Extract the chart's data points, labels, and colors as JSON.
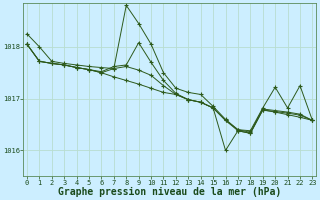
{
  "background_color": "#cceeff",
  "grid_color": "#aaddcc",
  "line_color": "#2d5a1b",
  "marker_color": "#2d5a1b",
  "xlabel": "Graphe pression niveau de la mer (hPa)",
  "xlabel_fontsize": 7,
  "yticks": [
    1016,
    1017,
    1018
  ],
  "ylim": [
    1015.5,
    1018.85
  ],
  "xlim": [
    -0.3,
    23.3
  ],
  "xticks": [
    0,
    1,
    2,
    3,
    4,
    5,
    6,
    7,
    8,
    9,
    10,
    11,
    12,
    13,
    14,
    15,
    16,
    17,
    18,
    19,
    20,
    21,
    22,
    23
  ],
  "tick_fontsize": 5,
  "series": [
    [
      1018.25,
      1018.0,
      1017.72,
      1017.68,
      1017.65,
      1017.62,
      1017.6,
      1017.58,
      1018.8,
      1018.45,
      1018.05,
      1017.5,
      1017.2,
      1017.12,
      1017.08,
      1016.85,
      1016.6,
      1016.4,
      1016.38,
      1016.82,
      1017.22,
      1016.82,
      1017.25,
      1016.58
    ],
    [
      1018.05,
      1017.72,
      1017.68,
      1017.65,
      1017.6,
      1017.56,
      1017.52,
      1017.62,
      1017.65,
      1018.08,
      1017.7,
      1017.35,
      1017.1,
      1016.98,
      1016.93,
      1016.82,
      1016.58,
      1016.4,
      1016.35,
      1016.8,
      1016.77,
      1016.74,
      1016.7,
      1016.58
    ],
    [
      1018.05,
      1017.72,
      1017.68,
      1017.65,
      1017.6,
      1017.56,
      1017.5,
      1017.58,
      1017.62,
      1017.55,
      1017.45,
      1017.25,
      1017.08,
      1016.98,
      1016.93,
      1016.82,
      1016.58,
      1016.38,
      1016.33,
      1016.78,
      1016.75,
      1016.72,
      1016.68,
      1016.58
    ],
    [
      1018.05,
      1017.72,
      1017.68,
      1017.65,
      1017.6,
      1017.56,
      1017.5,
      1017.42,
      1017.35,
      1017.28,
      1017.2,
      1017.12,
      1017.08,
      1016.98,
      1016.93,
      1016.82,
      1016.0,
      1016.38,
      1016.33,
      1016.78,
      1016.74,
      1016.69,
      1016.64,
      1016.58
    ]
  ]
}
